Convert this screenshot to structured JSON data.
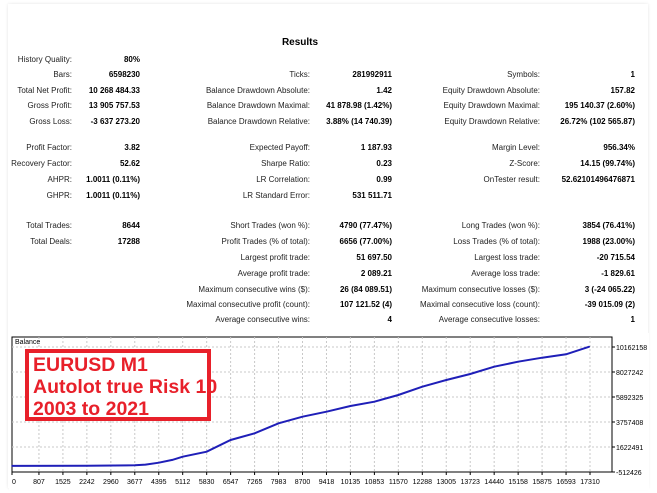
{
  "report": {
    "title": "Results",
    "rows": [
      [
        "History Quality:",
        "80%",
        "",
        "",
        "",
        ""
      ],
      [
        "Bars:",
        "6598230",
        "Ticks:",
        "281992911",
        "Symbols:",
        "1"
      ],
      [
        "Total Net Profit:",
        "10 268 484.33",
        "Balance Drawdown Absolute:",
        "1.42",
        "Equity Drawdown Absolute:",
        "157.82"
      ],
      [
        "Gross Profit:",
        "13 905 757.53",
        "Balance Drawdown Maximal:",
        "41 878.98 (1.42%)",
        "Equity Drawdown Maximal:",
        "195 140.37 (2.60%)"
      ],
      [
        "Gross Loss:",
        "-3 637 273.20",
        "Balance Drawdown Relative:",
        "3.88% (14 740.39)",
        "Equity Drawdown Relative:",
        "26.72% (102 565.87)"
      ],
      [
        "Profit Factor:",
        "3.82",
        "Expected Payoff:",
        "1 187.93",
        "Margin Level:",
        "956.34%"
      ],
      [
        "Recovery Factor:",
        "52.62",
        "Sharpe Ratio:",
        "0.23",
        "Z-Score:",
        "14.15 (99.74%)"
      ],
      [
        "AHPR:",
        "1.0011 (0.11%)",
        "LR Correlation:",
        "0.99",
        "OnTester result:",
        "52.62101496476871"
      ],
      [
        "GHPR:",
        "1.0011 (0.11%)",
        "LR Standard Error:",
        "531 511.71",
        "",
        ""
      ],
      [
        "Total Trades:",
        "8644",
        "Short Trades (won %):",
        "4790 (77.47%)",
        "Long Trades (won %):",
        "3854 (76.41%)"
      ],
      [
        "Total Deals:",
        "17288",
        "Profit Trades (% of total):",
        "6656 (77.00%)",
        "Loss Trades (% of total):",
        "1988 (23.00%)"
      ],
      [
        "",
        "",
        "Largest profit trade:",
        "51 697.50",
        "Largest loss trade:",
        "-20 715.54"
      ],
      [
        "",
        "",
        "Average profit trade:",
        "2 089.21",
        "Average loss trade:",
        "-1 829.61"
      ],
      [
        "",
        "",
        "Maximum consecutive wins ($):",
        "26 (84 089.51)",
        "Maximum consecutive losses ($):",
        "3 (-24 065.22)"
      ],
      [
        "",
        "",
        "Maximal consecutive profit (count):",
        "107 121.52 (4)",
        "Maximal consecutive loss (count):",
        "-39 015.09 (2)"
      ],
      [
        "",
        "",
        "Average consecutive wins:",
        "4",
        "Average consecutive losses:",
        "1"
      ]
    ]
  },
  "annotation": {
    "lines": [
      "EURUSD M1",
      "Autolot true Risk 10",
      "2003 to 2021"
    ],
    "color": "#e8202a"
  },
  "chart_data": {
    "type": "line",
    "title": "Balance",
    "xlim": [
      0,
      17310
    ],
    "ylim": [
      -512426,
      10162158
    ],
    "x_ticks": [
      "0",
      "807",
      "1525",
      "2242",
      "2960",
      "3677",
      "4395",
      "5112",
      "5830",
      "6547",
      "7265",
      "7983",
      "8700",
      "9418",
      "10135",
      "10853",
      "11570",
      "12288",
      "13005",
      "13723",
      "14440",
      "15158",
      "15875",
      "16593",
      "17310"
    ],
    "y_ticks": [
      "10162158",
      "8027242",
      "5892325",
      "3757408",
      "1622491",
      "-512426"
    ],
    "grid": true,
    "line_color": "#1f1fb8",
    "series": [
      {
        "x": [
          0,
          2242,
          3677,
          4000,
          4395,
          4800,
          5112,
          5830,
          6547,
          7265,
          7983,
          8700,
          9418,
          10135,
          10853,
          11570,
          12288,
          13005,
          13723,
          14440,
          15158,
          15875,
          16593,
          17288
        ],
        "values": [
          10000,
          20000,
          60000,
          120000,
          280000,
          520000,
          790000,
          1220000,
          2220000,
          2790000,
          3650000,
          4210000,
          4640000,
          5120000,
          5490000,
          6060000,
          6770000,
          7340000,
          7860000,
          8480000,
          8910000,
          9250000,
          9540000,
          10190000
        ]
      }
    ]
  }
}
